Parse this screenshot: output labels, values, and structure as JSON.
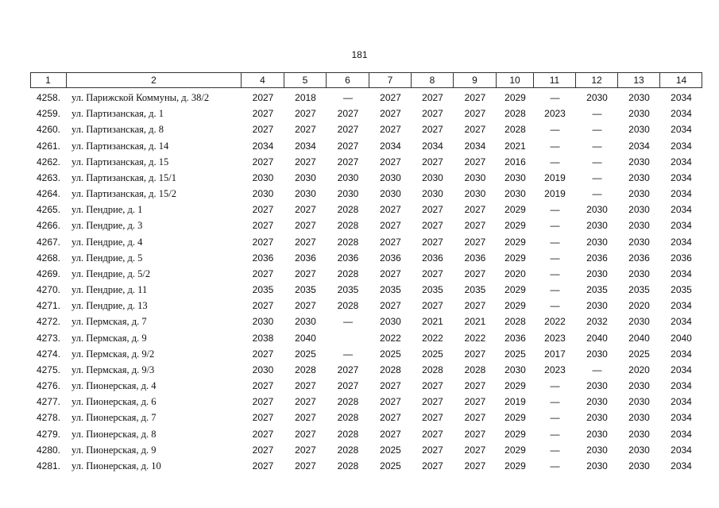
{
  "page_number": "181",
  "table": {
    "header": [
      "1",
      "2",
      "4",
      "5",
      "6",
      "7",
      "8",
      "9",
      "10",
      "11",
      "12",
      "13",
      "14"
    ],
    "rows": [
      [
        "4258.",
        "ул. Парижской Коммуны, д. 38/2",
        2027,
        2018,
        "—",
        2027,
        2027,
        2027,
        2029,
        "—",
        2030,
        2030,
        2034
      ],
      [
        "4259.",
        "ул. Партизанская, д. 1",
        2027,
        2027,
        2027,
        2027,
        2027,
        2027,
        2028,
        2023,
        "—",
        2030,
        2034
      ],
      [
        "4260.",
        "ул. Партизанская, д. 8",
        2027,
        2027,
        2027,
        2027,
        2027,
        2027,
        2028,
        "—",
        "—",
        2030,
        2034
      ],
      [
        "4261.",
        "ул. Партизанская, д. 14",
        2034,
        2034,
        2027,
        2034,
        2034,
        2034,
        2021,
        "—",
        "—",
        2034,
        2034
      ],
      [
        "4262.",
        "ул. Партизанская, д. 15",
        2027,
        2027,
        2027,
        2027,
        2027,
        2027,
        2016,
        "—",
        "—",
        2030,
        2034
      ],
      [
        "4263.",
        "ул. Партизанская, д. 15/1",
        2030,
        2030,
        2030,
        2030,
        2030,
        2030,
        2030,
        2019,
        "—",
        2030,
        2034
      ],
      [
        "4264.",
        "ул. Партизанская, д. 15/2",
        2030,
        2030,
        2030,
        2030,
        2030,
        2030,
        2030,
        2019,
        "—",
        2030,
        2034
      ],
      [
        "4265.",
        "ул. Пендрие, д. 1",
        2027,
        2027,
        2028,
        2027,
        2027,
        2027,
        2029,
        "—",
        2030,
        2030,
        2034
      ],
      [
        "4266.",
        "ул. Пендрие, д. 3",
        2027,
        2027,
        2028,
        2027,
        2027,
        2027,
        2029,
        "—",
        2030,
        2030,
        2034
      ],
      [
        "4267.",
        "ул. Пендрие, д. 4",
        2027,
        2027,
        2028,
        2027,
        2027,
        2027,
        2029,
        "—",
        2030,
        2030,
        2034
      ],
      [
        "4268.",
        "ул. Пендрие, д. 5",
        2036,
        2036,
        2036,
        2036,
        2036,
        2036,
        2029,
        "—",
        2036,
        2036,
        2036
      ],
      [
        "4269.",
        "ул. Пендрие, д. 5/2",
        2027,
        2027,
        2028,
        2027,
        2027,
        2027,
        2020,
        "—",
        2030,
        2030,
        2034
      ],
      [
        "4270.",
        "ул. Пендрие, д. 11",
        2035,
        2035,
        2035,
        2035,
        2035,
        2035,
        2029,
        "—",
        2035,
        2035,
        2035
      ],
      [
        "4271.",
        "ул. Пендрие, д. 13",
        2027,
        2027,
        2028,
        2027,
        2027,
        2027,
        2029,
        "—",
        2030,
        2020,
        2034
      ],
      [
        "4272.",
        "ул. Пермская, д. 7",
        2030,
        2030,
        "—",
        2030,
        2021,
        2021,
        2028,
        2022,
        2032,
        2030,
        2034
      ],
      [
        "4273.",
        "ул. Пермская, д. 9",
        2038,
        2040,
        null,
        2022,
        2022,
        2022,
        2036,
        2023,
        2040,
        2040,
        2040
      ],
      [
        "4274.",
        "ул. Пермская, д. 9/2",
        2027,
        2025,
        "—",
        2025,
        2025,
        2027,
        2025,
        2017,
        2030,
        2025,
        2034
      ],
      [
        "4275.",
        "ул. Пермская, д. 9/3",
        2030,
        2028,
        2027,
        2028,
        2028,
        2028,
        2030,
        2023,
        "—",
        2020,
        2034
      ],
      [
        "4276.",
        "ул. Пионерская, д. 4",
        2027,
        2027,
        2027,
        2027,
        2027,
        2027,
        2029,
        "—",
        2030,
        2030,
        2034
      ],
      [
        "4277.",
        "ул. Пионерская, д. 6",
        2027,
        2027,
        2028,
        2027,
        2027,
        2027,
        2019,
        "—",
        2030,
        2030,
        2034
      ],
      [
        "4278.",
        "ул. Пионерская, д. 7",
        2027,
        2027,
        2028,
        2027,
        2027,
        2027,
        2029,
        "—",
        2030,
        2030,
        2034
      ],
      [
        "4279.",
        "ул. Пионерская, д. 8",
        2027,
        2027,
        2028,
        2027,
        2027,
        2027,
        2029,
        "—",
        2030,
        2030,
        2034
      ],
      [
        "4280.",
        "ул. Пионерская, д. 9",
        2027,
        2027,
        2028,
        2025,
        2027,
        2027,
        2029,
        "—",
        2030,
        2030,
        2034
      ],
      [
        "4281.",
        "ул. Пионерская, д. 10",
        2027,
        2027,
        2028,
        2025,
        2027,
        2027,
        2029,
        "—",
        2030,
        2030,
        2034
      ]
    ]
  }
}
